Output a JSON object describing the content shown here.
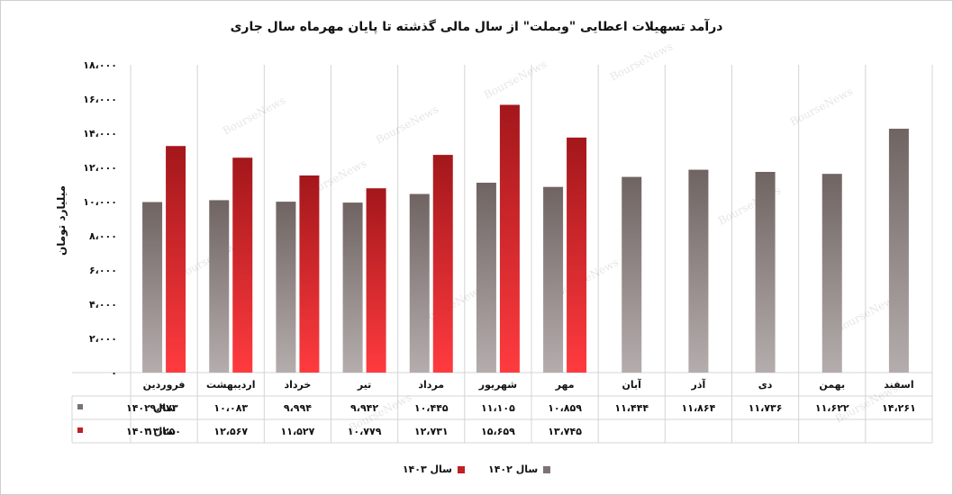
{
  "chart_data": {
    "type": "bar",
    "title": "درآمد تسهیلات اعطایی \"وبملت\" از سال مالی گذشته تا پایان مهرماه سال جاری",
    "xlabel": "",
    "ylabel": "میلیارد تومان",
    "ylim": [
      0,
      18000
    ],
    "ytick_labels": [
      "۰",
      "۲،۰۰۰",
      "۴،۰۰۰",
      "۶،۰۰۰",
      "۸،۰۰۰",
      "۱۰،۰۰۰",
      "۱۲،۰۰۰",
      "۱۴،۰۰۰",
      "۱۶،۰۰۰",
      "۱۸،۰۰۰"
    ],
    "categories": [
      "فروردین",
      "اردیبهشت",
      "خرداد",
      "تیر",
      "مرداد",
      "شهریور",
      "مهر",
      "آبان",
      "آذر",
      "دی",
      "بهمن",
      "اسفند"
    ],
    "series": [
      {
        "name": "سال ۱۴۰۲",
        "color": "#7d7372",
        "values": [
          9973,
          10083,
          9994,
          9942,
          10445,
          11105,
          10859,
          11444,
          11864,
          11736,
          11622,
          14261
        ],
        "labels": [
          "۹،۹۷۳",
          "۱۰،۰۸۳",
          "۹،۹۹۴",
          "۹،۹۴۲",
          "۱۰،۴۴۵",
          "۱۱،۱۰۵",
          "۱۰،۸۵۹",
          "۱۱،۴۴۴",
          "۱۱،۸۶۴",
          "۱۱،۷۳۶",
          "۱۱،۶۲۲",
          "۱۴،۲۶۱"
        ]
      },
      {
        "name": "سال ۱۴۰۳",
        "color": "#c01f24",
        "values": [
          13250,
          12567,
          11527,
          10779,
          12731,
          15659,
          13745,
          null,
          null,
          null,
          null,
          null
        ],
        "labels": [
          "۱۳،۲۵۰",
          "۱۲،۵۶۷",
          "۱۱،۵۲۷",
          "۱۰،۷۷۹",
          "۱۲،۷۳۱",
          "۱۵،۶۵۹",
          "۱۳،۷۴۵",
          "",
          "",
          "",
          "",
          ""
        ]
      }
    ],
    "watermark": "BourseNews",
    "grid": true,
    "legend": "bottom"
  },
  "legend": {
    "s1": "سال ۱۴۰۲",
    "s2": "سال ۱۴۰۳"
  }
}
